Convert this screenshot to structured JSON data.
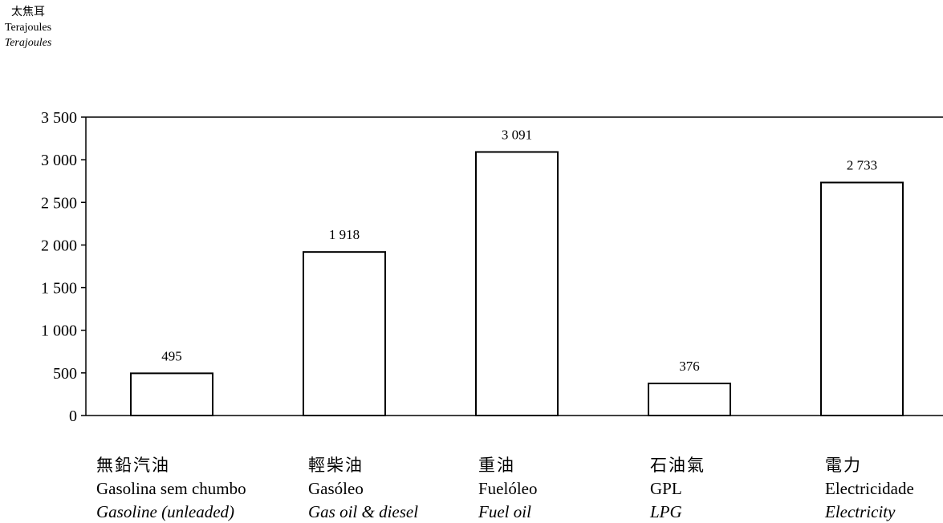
{
  "unit_label": {
    "zh": "太焦耳",
    "pt": "Terajoules",
    "en": "Terajoules"
  },
  "chart_data": {
    "type": "bar",
    "categories": [
      {
        "zh": "無鉛汽油",
        "pt": "Gasolina sem chumbo",
        "en": "Gasoline (unleaded)"
      },
      {
        "zh": "輕柴油",
        "pt": "Gasóleo",
        "en": "Gas oil & diesel"
      },
      {
        "zh": "重油",
        "pt": "Fuelóleo",
        "en": "Fuel oil"
      },
      {
        "zh": "石油氣",
        "pt": "GPL",
        "en": "LPG"
      },
      {
        "zh": "電力",
        "pt": "Electricidade",
        "en": "Electricity"
      }
    ],
    "values": [
      495,
      1918,
      3091,
      376,
      2733
    ],
    "value_labels": [
      "495",
      "1 918",
      "3 091",
      "376",
      "2 733"
    ],
    "ylim": [
      0,
      3500
    ],
    "yticks": [
      0,
      500,
      1000,
      1500,
      2000,
      2500,
      3000,
      3500
    ],
    "ytick_labels": [
      "0",
      "500",
      "1 000",
      "1 500",
      "2 000",
      "2 500",
      "3 000",
      "3 500"
    ],
    "grid": false,
    "bar_fill": "#ffffff",
    "bar_stroke": "#000000"
  }
}
